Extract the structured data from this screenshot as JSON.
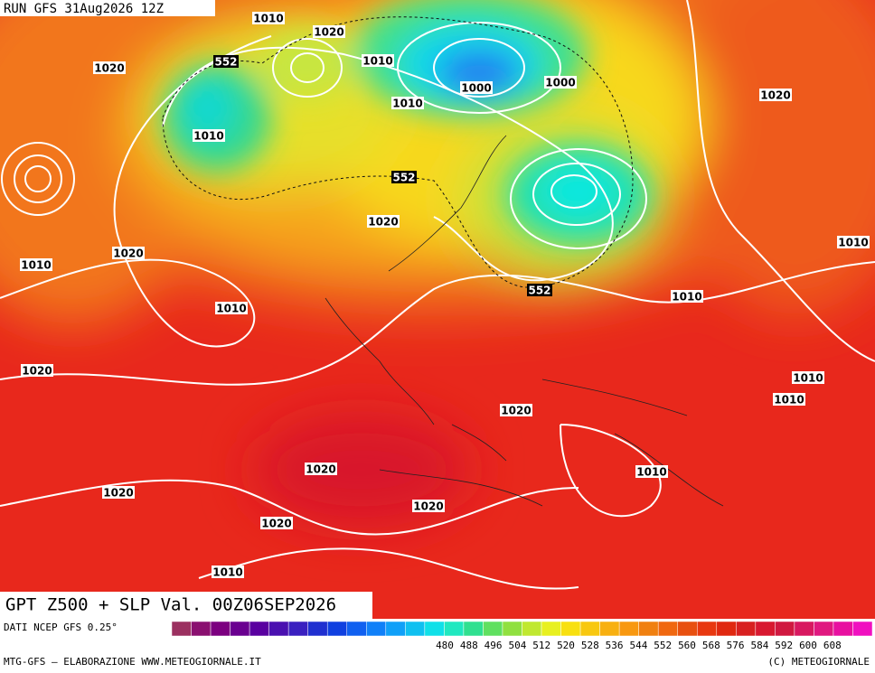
{
  "header": {
    "run": "RUN GFS 31Aug2026 12Z"
  },
  "map": {
    "isobar_labels": [
      "1010",
      "1020",
      "1020",
      "1010",
      "1000",
      "1000",
      "1010",
      "1010",
      "1020",
      "1020",
      "1010",
      "1020",
      "1010",
      "1010",
      "1010",
      "1020",
      "1010",
      "1010",
      "1020",
      "1020",
      "1010",
      "1020",
      "1020",
      "1020",
      "1010"
    ],
    "height_labels": [
      "552",
      "552",
      "552"
    ]
  },
  "footer": {
    "title": "GPT Z500 + SLP Val. 00Z06SEP2026",
    "source": "DATI NCEP GFS 0.25°",
    "credit": "MTG-GFS — ELABORAZIONE WWW.METEOGIORNALE.IT",
    "copyright": "(C) METEOGIORNALE",
    "colorbar_ticks": [
      "480",
      "488",
      "496",
      "504",
      "512",
      "520",
      "528",
      "536",
      "544",
      "552",
      "560",
      "568",
      "576",
      "584",
      "592",
      "600",
      "608"
    ]
  }
}
